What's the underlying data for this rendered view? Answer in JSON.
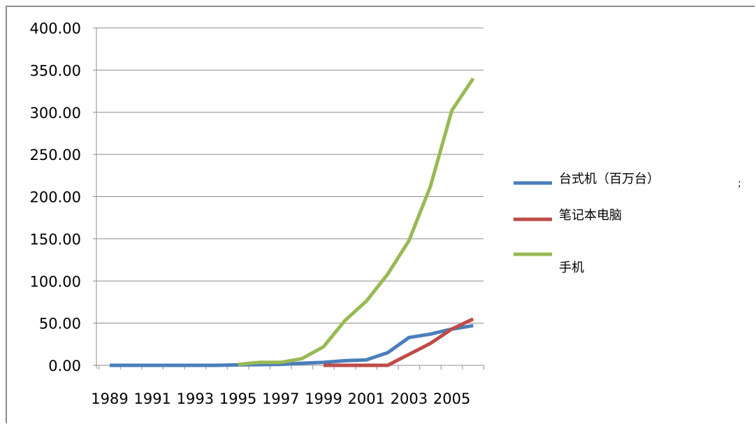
{
  "chart_data": {
    "type": "line",
    "title": "",
    "xlabel": "",
    "ylabel": "",
    "x": [
      1989,
      1990,
      1991,
      1992,
      1993,
      1994,
      1995,
      1996,
      1997,
      1998,
      1999,
      2000,
      2001,
      2002,
      2003,
      2004,
      2005,
      2006
    ],
    "x_tick_labels": [
      "1989",
      "1991",
      "1993",
      "1995",
      "1997",
      "1999",
      "2001",
      "2003",
      "2005"
    ],
    "y_tick_labels": [
      "0.00",
      "50.00",
      "100.00",
      "150.00",
      "200.00",
      "250.00",
      "300.00",
      "350.00",
      "400.00"
    ],
    "ylim": [
      0,
      400
    ],
    "grid": "horizontal",
    "legend_position": "right",
    "series": [
      {
        "name": "台式机（百万台）",
        "color": "#4a7ebb",
        "values": [
          0,
          0,
          0,
          0,
          0,
          0,
          0.5,
          0.8,
          1.2,
          2.5,
          3.5,
          5.5,
          6.5,
          15,
          33,
          37,
          43,
          47
        ]
      },
      {
        "name": "笔记本电脑",
        "color": "#be4b48",
        "values": [
          null,
          null,
          null,
          null,
          null,
          null,
          null,
          null,
          null,
          null,
          0,
          0,
          0,
          0,
          13,
          26,
          43,
          55
        ]
      },
      {
        "name": "手机",
        "color": "#98b954",
        "values": [
          null,
          null,
          null,
          null,
          null,
          null,
          1,
          3.5,
          3.5,
          8,
          22,
          53,
          76,
          108,
          148,
          212,
          302,
          340
        ]
      }
    ]
  }
}
